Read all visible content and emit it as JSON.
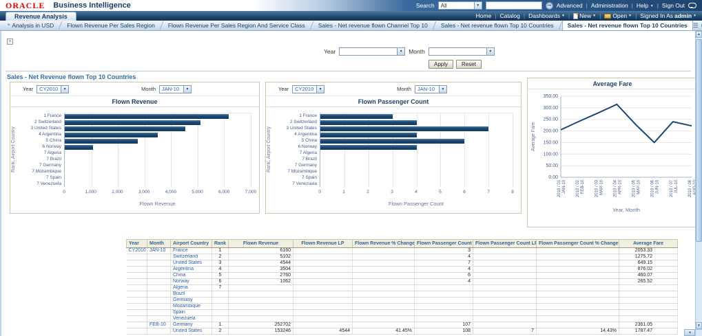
{
  "header": {
    "logo_text": "ORACLE",
    "product_name": "Business Intelligence",
    "search": {
      "label": "Search",
      "scope": "All",
      "query": ""
    },
    "links": {
      "advanced": "Advanced",
      "administration": "Administration",
      "help": "Help",
      "sign_out": "Sign Out"
    }
  },
  "brand_bar": {
    "dashboard_tab": "Revenue Analysis",
    "links": {
      "home": "Home",
      "catalog": "Catalog",
      "dashboards": "Dashboards",
      "new": "New",
      "open": "Open",
      "signed_in_as": "Signed In As",
      "user": "admin"
    }
  },
  "page_tabs": {
    "tabs": [
      {
        "label": "Analysis in USD",
        "active": false,
        "starred": true
      },
      {
        "label": "Flown Revenue Per Sales Region",
        "active": false,
        "starred": false
      },
      {
        "label": "Flown Revenue Per Sales Region And Service Class",
        "active": false,
        "starred": false
      },
      {
        "label": "Sales - Net revenue flown Channel Top 10",
        "active": false,
        "starred": false
      },
      {
        "label": "Sales - Net revenue flown Top 10 Countries",
        "active": false,
        "starred": false
      },
      {
        "label": "Sales - Net revenue flown Top 10 Countries",
        "active": true,
        "starred": false
      }
    ]
  },
  "prompt_bar": {
    "year_label": "Year",
    "year_value": "",
    "month_label": "Month",
    "month_value": "",
    "apply_label": "Apply",
    "reset_label": "Reset"
  },
  "section": {
    "title": "Sales - Net Revenue flown Top 10 Countries"
  },
  "panel_prompts": {
    "year_label": "Year",
    "year_value": "CY2010",
    "month_label": "Month",
    "month_value": "JAN-10"
  },
  "chart_data": [
    {
      "type": "bar",
      "orientation": "horizontal",
      "title": "Flown Revenue",
      "xlabel": "Flown Revenue",
      "ylabel": "Rank, Airport Country",
      "xlim": [
        0,
        7000
      ],
      "xticks": [
        "0",
        "1,000",
        "2,000",
        "3,000",
        "4,000",
        "5,000",
        "6,000",
        "7,000"
      ],
      "categories": [
        "1 France",
        "2 Switzerland",
        "3 United States",
        "4 Argentina",
        "5 China",
        "6 Norway",
        "7 Algeria",
        "7 Brazil",
        "7 Germany",
        "7 Mozambique",
        "7 Spain",
        "7 Venezuela"
      ],
      "values": [
        6160,
        5102,
        4544,
        3504,
        2760,
        1062,
        0,
        0,
        0,
        0,
        0,
        0
      ],
      "bar_color": "#1c466f",
      "grid": true
    },
    {
      "type": "bar",
      "orientation": "horizontal",
      "title": "Flown Passenger Count",
      "xlabel": "Flown Passenger Count",
      "ylabel": "Rank, Airport Country",
      "xlim": [
        0,
        8
      ],
      "xticks": [
        "0",
        "1",
        "2",
        "3",
        "4",
        "5",
        "6",
        "7",
        "8"
      ],
      "categories": [
        "1 France",
        "2 Switzerland",
        "3 United States",
        "4 Argentina",
        "5 China",
        "6 Norway",
        "7 Algeria",
        "7 Brazil",
        "7 Germany",
        "7 Mozambique",
        "7 Spain",
        "7 Venezuela"
      ],
      "values": [
        3,
        4,
        7,
        4,
        6,
        4,
        0,
        0,
        0,
        0,
        0,
        0
      ],
      "bar_color": "#1c466f",
      "grid": true
    },
    {
      "type": "line",
      "title": "Average Fare",
      "xlabel": "Year, Month",
      "ylabel": "Average Fare",
      "ylim": [
        0,
        350
      ],
      "yticks": [
        "350.00",
        "300.00",
        "250.00",
        "200.00",
        "150.00",
        "100.00",
        "50.00",
        "0.00"
      ],
      "x_labels": [
        {
          "line1": "2010 / 01",
          "line2": "JAN-10"
        },
        {
          "line1": "2010 / 02",
          "line2": "FEB-10"
        },
        {
          "line1": "2010 / 03",
          "line2": "MAR-10"
        },
        {
          "line1": "2010 / 04",
          "line2": "APR-10"
        },
        {
          "line1": "2010 / 05",
          "line2": "MAY-10"
        },
        {
          "line1": "2010 / 06",
          "line2": "JUN-10"
        },
        {
          "line1": "2010 / 07",
          "line2": "JUL-10"
        },
        {
          "line1": "2010 / 08",
          "line2": "AUG-10"
        }
      ],
      "values": [
        205,
        242,
        278,
        315,
        228,
        150,
        240,
        222
      ],
      "line_color": "#1c466f",
      "grid": true
    }
  ],
  "table": {
    "headers": [
      "Year",
      "Month",
      "Airport Country",
      "Rank",
      "Flown Revenue",
      "Flown Revenue LP",
      "Flown Revenue % Change LP",
      "Flown Passenger Count",
      "Flown Passenger Count LP",
      "Flown Passenger Count % Change LP",
      "Average Fare"
    ],
    "rows": [
      [
        "CY2010",
        "JAN-10",
        "France",
        "1",
        "6160",
        "",
        "",
        "3",
        "",
        "",
        "2053.33"
      ],
      [
        "",
        "",
        "Switzerland",
        "2",
        "5102",
        "",
        "",
        "4",
        "",
        "",
        "1275.72"
      ],
      [
        "",
        "",
        "United States",
        "3",
        "4544",
        "",
        "",
        "7",
        "",
        "",
        "649.15"
      ],
      [
        "",
        "",
        "Argentina",
        "4",
        "3504",
        "",
        "",
        "4",
        "",
        "",
        "876.02"
      ],
      [
        "",
        "",
        "China",
        "5",
        "2760",
        "",
        "",
        "6",
        "",
        "",
        "460.07"
      ],
      [
        "",
        "",
        "Norway",
        "6",
        "1062",
        "",
        "",
        "4",
        "",
        "",
        "265.52"
      ],
      [
        "",
        "",
        "Algeria",
        "7",
        "",
        "",
        "",
        "",
        "",
        "",
        ""
      ],
      [
        "",
        "",
        "Brazil",
        "",
        "",
        "",
        "",
        "",
        "",
        "",
        ""
      ],
      [
        "",
        "",
        "Germany",
        "",
        "",
        "",
        "",
        "",
        "",
        "",
        ""
      ],
      [
        "",
        "",
        "Mozambique",
        "",
        "",
        "",
        "",
        "",
        "",
        "",
        ""
      ],
      [
        "",
        "",
        "Spain",
        "",
        "",
        "",
        "",
        "",
        "",
        "",
        ""
      ],
      [
        "",
        "",
        "Venezuela",
        "",
        "",
        "",
        "",
        "",
        "",
        "",
        ""
      ],
      [
        "",
        "FEB-10",
        "Germany",
        "1",
        "252702",
        "",
        "",
        "107",
        "",
        "",
        "2361.05"
      ],
      [
        "",
        "",
        "United States",
        "2",
        "153246",
        "4544",
        "41.45%",
        "108",
        "7",
        "14.43%",
        "1787.47"
      ]
    ]
  }
}
